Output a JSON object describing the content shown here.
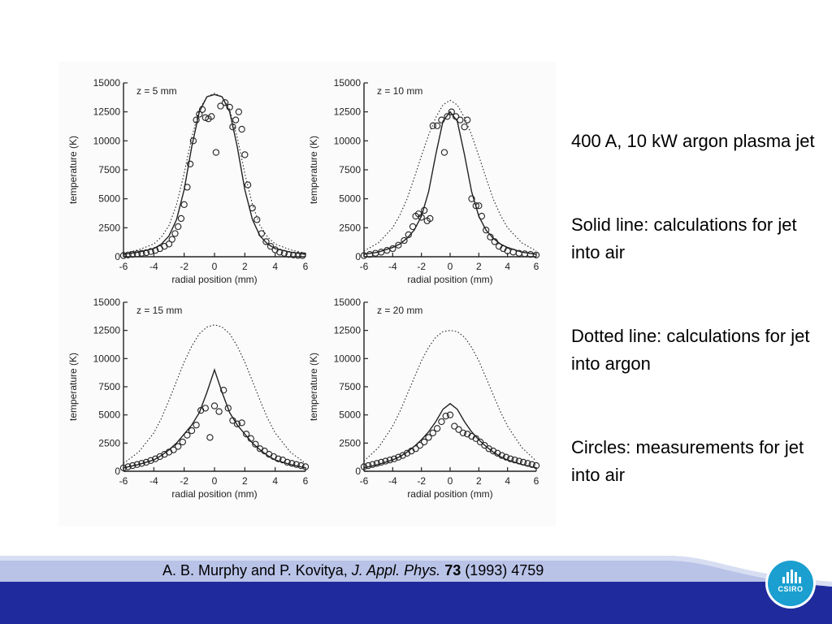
{
  "captions": [
    "400 A, 10 kW argon plasma jet",
    "Solid line: calculations for jet into air",
    "Dotted line: calculations for jet into argon",
    "Circles: measurements for jet into air"
  ],
  "citation": {
    "authors": "A. B. Murphy and P. Kovitya, ",
    "journal": "J. Appl. Phys.",
    "volume": " 73",
    "rest": " (1993) 4759"
  },
  "logo": {
    "text": "CSIRO",
    "icon": "csiro-logo-icon"
  },
  "colors": {
    "footer_blue": "#1f2a9c",
    "footer_light": "#b9c3e8",
    "logo_blue": "#1a9fd0"
  },
  "chart_data": [
    {
      "type": "line",
      "annotation": "z = 5 mm",
      "xlabel": "radial position (mm)",
      "ylabel": "temperature (K)",
      "xlim": [
        -6,
        6
      ],
      "ylim": [
        0,
        15000
      ],
      "xticks": [
        -6,
        -4,
        -2,
        0,
        2,
        4,
        6
      ],
      "yticks": [
        0,
        2500,
        5000,
        7500,
        10000,
        12500,
        15000
      ],
      "series": [
        {
          "style": "solid",
          "x": [
            -6,
            -5,
            -4,
            -3.5,
            -3,
            -2.5,
            -2,
            -1.5,
            -1,
            -0.5,
            0,
            0.5,
            1,
            1.5,
            2,
            2.5,
            3,
            3.5,
            4,
            5,
            6
          ],
          "y": [
            200,
            400,
            700,
            1100,
            1800,
            3200,
            5800,
            9500,
            12500,
            13800,
            14000,
            13800,
            12500,
            9500,
            5800,
            3200,
            1800,
            1100,
            700,
            400,
            200
          ]
        },
        {
          "style": "dotted",
          "x": [
            -6,
            -5,
            -4,
            -3.5,
            -3,
            -2.5,
            -2,
            -1.5,
            -1,
            -0.5,
            0,
            0.5,
            1,
            1.5,
            2,
            2.5,
            3,
            3.5,
            4,
            5,
            6
          ],
          "y": [
            300,
            600,
            1100,
            1700,
            2700,
            4500,
            7200,
            10300,
            12700,
            13800,
            14100,
            13800,
            12700,
            10300,
            7200,
            4500,
            2700,
            1700,
            1100,
            600,
            300
          ]
        },
        {
          "style": "circles",
          "x": [
            -6,
            -5.7,
            -5.4,
            -5.1,
            -4.8,
            -4.5,
            -4.2,
            -3.9,
            -3.6,
            -3.3,
            -3,
            -2.8,
            -2.6,
            -2.4,
            -2.2,
            -2,
            -1.8,
            -1.6,
            -1.4,
            -1.2,
            -1,
            -0.8,
            -0.6,
            -0.4,
            -0.2,
            0.1,
            0.4,
            0.7,
            1,
            1.2,
            1.4,
            1.6,
            1.8,
            2,
            2.2,
            2.5,
            2.8,
            3.1,
            3.4,
            3.7,
            4,
            4.3,
            4.6,
            4.9,
            5.2,
            5.5,
            5.8
          ],
          "y": [
            100,
            150,
            200,
            250,
            300,
            350,
            450,
            550,
            700,
            900,
            1100,
            1500,
            2000,
            2600,
            3300,
            4500,
            6000,
            8000,
            10000,
            11800,
            12300,
            12700,
            12000,
            11900,
            12100,
            9000,
            13000,
            13300,
            12900,
            11200,
            11800,
            12500,
            11000,
            8800,
            6200,
            4200,
            3200,
            2000,
            1300,
            900,
            600,
            400,
            300,
            200,
            150,
            120,
            100
          ]
        }
      ]
    },
    {
      "type": "line",
      "annotation": "z = 10 mm",
      "xlabel": "radial position (mm)",
      "ylabel": "temperature (K)",
      "xlim": [
        -6,
        6
      ],
      "ylim": [
        0,
        15000
      ],
      "xticks": [
        -6,
        -4,
        -2,
        0,
        2,
        4,
        6
      ],
      "yticks": [
        0,
        2500,
        5000,
        7500,
        10000,
        12500,
        15000
      ],
      "series": [
        {
          "style": "solid",
          "x": [
            -6,
            -5,
            -4,
            -3.5,
            -3,
            -2.5,
            -2,
            -1.5,
            -1,
            -0.5,
            0,
            0.5,
            1,
            1.5,
            2,
            2.5,
            3,
            3.5,
            4,
            5,
            6
          ],
          "y": [
            200,
            400,
            800,
            1100,
            1600,
            2300,
            3500,
            5600,
            8800,
            11700,
            12500,
            11700,
            8800,
            5600,
            3500,
            2300,
            1600,
            1100,
            800,
            400,
            200
          ]
        },
        {
          "style": "dotted",
          "x": [
            -6,
            -5,
            -4,
            -3.5,
            -3,
            -2.5,
            -2,
            -1.5,
            -1,
            -0.5,
            0,
            0.5,
            1,
            1.5,
            2,
            2.5,
            3,
            3.5,
            4,
            5,
            6
          ],
          "y": [
            500,
            1200,
            2500,
            3600,
            5000,
            6800,
            8700,
            10500,
            12000,
            13100,
            13500,
            13100,
            12000,
            10500,
            8700,
            6800,
            5000,
            3600,
            2500,
            1200,
            500
          ]
        },
        {
          "style": "circles",
          "x": [
            -6,
            -5.6,
            -5.2,
            -4.8,
            -4.4,
            -4,
            -3.6,
            -3.2,
            -2.9,
            -2.6,
            -2.4,
            -2.2,
            -2,
            -1.8,
            -1.6,
            -1.4,
            -1.2,
            -0.9,
            -0.6,
            -0.4,
            -0.2,
            0.1,
            0.4,
            0.7,
            1,
            1.2,
            1.5,
            1.8,
            2,
            2.2,
            2.5,
            2.8,
            3.1,
            3.4,
            3.7,
            4,
            4.4,
            4.8,
            5.2,
            5.6,
            6
          ],
          "y": [
            100,
            200,
            300,
            400,
            550,
            700,
            1000,
            1400,
            1900,
            2600,
            3500,
            3700,
            3400,
            4000,
            3100,
            3300,
            11300,
            11300,
            11800,
            9000,
            12100,
            12500,
            12100,
            11800,
            11200,
            11800,
            5000,
            4400,
            4400,
            3500,
            2300,
            1700,
            1300,
            900,
            700,
            500,
            400,
            300,
            250,
            200,
            150
          ]
        }
      ]
    },
    {
      "type": "line",
      "annotation": "z = 15 mm",
      "xlabel": "radial position (mm)",
      "ylabel": "temperature (K)",
      "xlim": [
        -6,
        6
      ],
      "ylim": [
        0,
        15000
      ],
      "xticks": [
        -6,
        -4,
        -2,
        0,
        2,
        4,
        6
      ],
      "yticks": [
        0,
        2500,
        5000,
        7500,
        10000,
        12500,
        15000
      ],
      "series": [
        {
          "style": "solid",
          "x": [
            -6,
            -5,
            -4,
            -3.5,
            -3,
            -2.5,
            -2,
            -1.5,
            -1,
            -0.5,
            0,
            0.5,
            1,
            1.5,
            2,
            2.5,
            3,
            3.5,
            4,
            5,
            6
          ],
          "y": [
            300,
            600,
            1000,
            1400,
            1900,
            2500,
            3300,
            4100,
            5200,
            7000,
            9000,
            7000,
            5200,
            4100,
            3300,
            2500,
            1900,
            1400,
            1000,
            600,
            300
          ]
        },
        {
          "style": "dotted",
          "x": [
            -6,
            -5,
            -4,
            -3.5,
            -3,
            -2.5,
            -2,
            -1.5,
            -1,
            -0.5,
            0,
            0.5,
            1,
            1.5,
            2,
            2.5,
            3,
            3.5,
            4,
            5,
            6
          ],
          "y": [
            700,
            1700,
            3400,
            4700,
            6300,
            8000,
            9700,
            11100,
            12200,
            12800,
            13000,
            12800,
            12200,
            11100,
            9700,
            8000,
            6300,
            4700,
            3400,
            1700,
            700
          ]
        },
        {
          "style": "circles",
          "x": [
            -6,
            -5.7,
            -5.4,
            -5.1,
            -4.8,
            -4.5,
            -4.2,
            -3.9,
            -3.6,
            -3.3,
            -3,
            -2.7,
            -2.4,
            -2.1,
            -1.8,
            -1.5,
            -1.2,
            -0.9,
            -0.6,
            -0.3,
            0,
            0.3,
            0.6,
            0.9,
            1.2,
            1.5,
            1.8,
            2.1,
            2.4,
            2.7,
            3,
            3.3,
            3.6,
            3.9,
            4.2,
            4.5,
            4.8,
            5.1,
            5.4,
            5.7,
            6
          ],
          "y": [
            300,
            400,
            500,
            600,
            700,
            800,
            950,
            1100,
            1300,
            1500,
            1700,
            1900,
            2200,
            2600,
            3200,
            3600,
            4100,
            5400,
            5600,
            3000,
            5800,
            5300,
            7200,
            5600,
            4500,
            4200,
            4300,
            3300,
            2900,
            2400,
            2000,
            1800,
            1500,
            1300,
            1100,
            1000,
            800,
            700,
            600,
            500,
            400
          ]
        }
      ]
    },
    {
      "type": "line",
      "annotation": "z = 20 mm",
      "xlabel": "radial position (mm)",
      "ylabel": "temperature (K)",
      "xlim": [
        -6,
        6
      ],
      "ylim": [
        0,
        15000
      ],
      "xticks": [
        -6,
        -4,
        -2,
        0,
        2,
        4,
        6
      ],
      "yticks": [
        0,
        2500,
        5000,
        7500,
        10000,
        12500,
        15000
      ],
      "series": [
        {
          "style": "solid",
          "x": [
            -6,
            -5,
            -4,
            -3.5,
            -3,
            -2.5,
            -2,
            -1.5,
            -1,
            -0.5,
            0,
            0.5,
            1,
            1.5,
            2,
            2.5,
            3,
            3.5,
            4,
            5,
            6
          ],
          "y": [
            300,
            600,
            1000,
            1300,
            1700,
            2200,
            2800,
            3500,
            4400,
            5500,
            6000,
            5500,
            4400,
            3500,
            2800,
            2200,
            1700,
            1300,
            1000,
            600,
            300
          ]
        },
        {
          "style": "dotted",
          "x": [
            -6,
            -5,
            -4,
            -3.5,
            -3,
            -2.5,
            -2,
            -1.5,
            -1,
            -0.5,
            0,
            0.5,
            1,
            1.5,
            2,
            2.5,
            3,
            3.5,
            4,
            5,
            6
          ],
          "y": [
            900,
            2100,
            4000,
            5300,
            6800,
            8300,
            9800,
            11000,
            11900,
            12400,
            12500,
            12400,
            11900,
            11000,
            9800,
            8300,
            6800,
            5300,
            4000,
            2100,
            900
          ]
        },
        {
          "style": "circles",
          "x": [
            -6,
            -5.7,
            -5.4,
            -5.1,
            -4.8,
            -4.5,
            -4.2,
            -3.9,
            -3.6,
            -3.3,
            -3,
            -2.7,
            -2.4,
            -2.1,
            -1.8,
            -1.5,
            -1.2,
            -0.9,
            -0.6,
            -0.3,
            0,
            0.3,
            0.6,
            0.9,
            1.2,
            1.5,
            1.8,
            2.1,
            2.4,
            2.7,
            3,
            3.3,
            3.6,
            3.9,
            4.2,
            4.5,
            4.8,
            5.1,
            5.4,
            5.7,
            6
          ],
          "y": [
            400,
            500,
            600,
            700,
            800,
            900,
            1000,
            1100,
            1250,
            1400,
            1600,
            1800,
            2000,
            2300,
            2600,
            3000,
            3400,
            3800,
            4400,
            4900,
            5000,
            4000,
            3700,
            3400,
            3300,
            3100,
            2900,
            2600,
            2300,
            2000,
            1800,
            1600,
            1400,
            1250,
            1100,
            1000,
            900,
            800,
            700,
            600,
            500
          ]
        }
      ]
    }
  ]
}
